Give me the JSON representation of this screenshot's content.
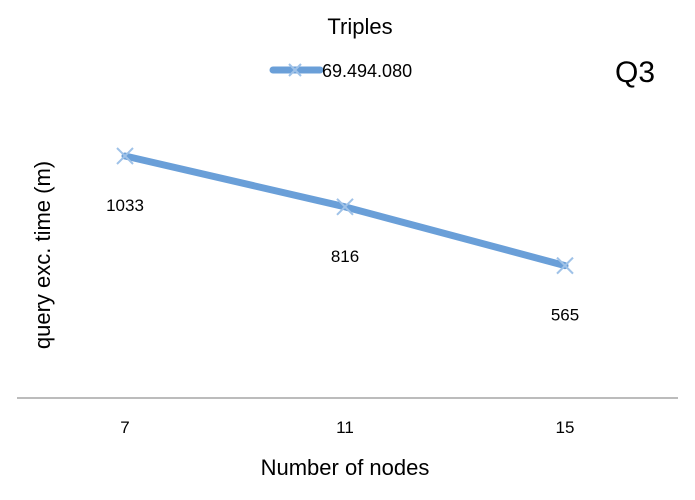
{
  "chart_data": {
    "type": "line",
    "title": "Q3",
    "legend_title": "Triples",
    "legend_position": "top-center",
    "xlabel": "Number of nodes",
    "ylabel": "query exc. time (m)",
    "categories": [
      "7",
      "11",
      "15"
    ],
    "series": [
      {
        "name": "69.494.080",
        "values": [
          1033,
          816,
          565
        ],
        "color": "#6a9fd8",
        "marker": "x"
      }
    ],
    "ylim": [
      0,
      1400
    ],
    "grid": false,
    "data_labels": true
  }
}
